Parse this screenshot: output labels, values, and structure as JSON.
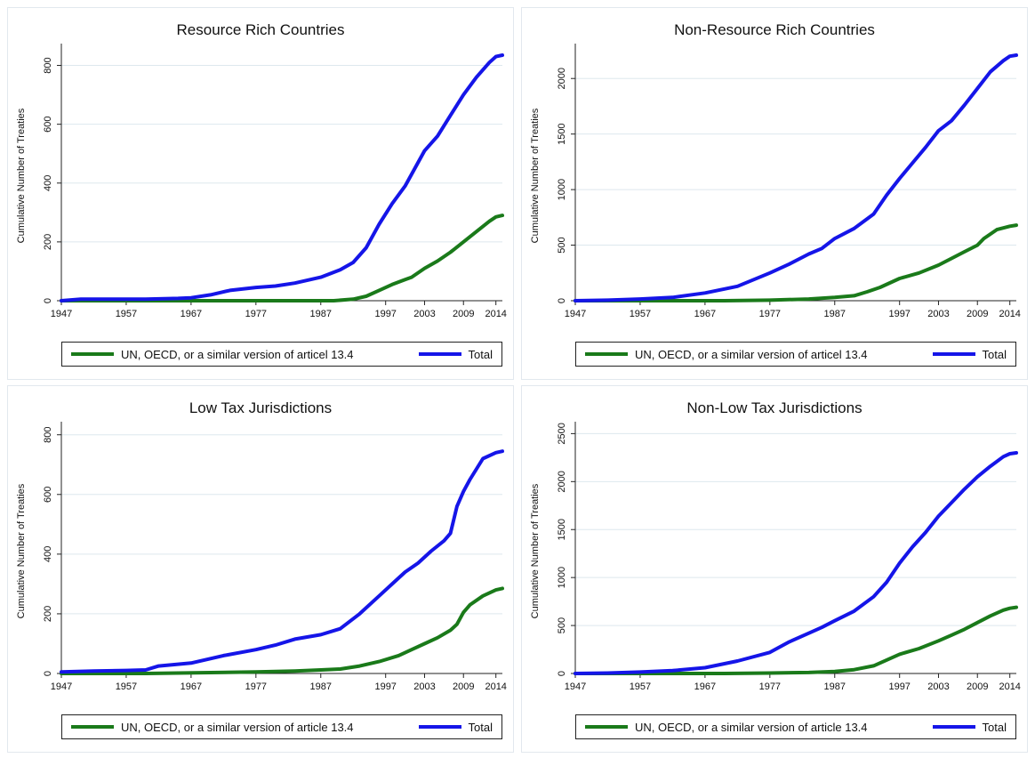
{
  "colors": {
    "green": "#1a7a1a",
    "blue": "#1515e8",
    "grid": "#dde8ee"
  },
  "chart_data": [
    {
      "type": "line",
      "title": "Resource Rich Countries",
      "xlabel": "",
      "ylabel": "Cumulative Number of Treaties",
      "x_ticks": [
        1947,
        1957,
        1967,
        1977,
        1987,
        1997,
        2003,
        2009,
        2014
      ],
      "y_ticks": [
        0,
        200,
        400,
        600,
        800
      ],
      "xlim": [
        1947,
        2015
      ],
      "ylim": [
        0,
        850
      ],
      "grid": true,
      "legend_position": "bottom",
      "series": [
        {
          "name": "UN, OECD, or a similar version of articel 13.4",
          "color": "green",
          "x": [
            1947,
            1960,
            1970,
            1980,
            1989,
            1992,
            1994,
            1996,
            1998,
            2000,
            2001,
            2003,
            2005,
            2007,
            2009,
            2011,
            2013,
            2014,
            2015
          ],
          "y": [
            0,
            0,
            0,
            0,
            0,
            5,
            15,
            35,
            55,
            72,
            80,
            110,
            135,
            165,
            200,
            235,
            270,
            285,
            290
          ]
        },
        {
          "name": "Total",
          "color": "blue",
          "x": [
            1947,
            1950,
            1955,
            1960,
            1965,
            1967,
            1970,
            1973,
            1977,
            1980,
            1983,
            1987,
            1990,
            1992,
            1994,
            1996,
            1998,
            2000,
            2002,
            2003,
            2005,
            2007,
            2009,
            2011,
            2013,
            2014,
            2015
          ],
          "y": [
            0,
            5,
            5,
            5,
            8,
            10,
            20,
            35,
            45,
            50,
            60,
            80,
            105,
            130,
            180,
            260,
            330,
            390,
            470,
            510,
            560,
            630,
            700,
            760,
            810,
            830,
            835
          ]
        }
      ]
    },
    {
      "type": "line",
      "title": "Non-Resource Rich Countries",
      "xlabel": "",
      "ylabel": "Cumulative Number of Treaties",
      "x_ticks": [
        1947,
        1957,
        1967,
        1977,
        1987,
        1997,
        2003,
        2009,
        2014
      ],
      "y_ticks": [
        0,
        500,
        1000,
        1500,
        2000
      ],
      "xlim": [
        1947,
        2015
      ],
      "ylim": [
        0,
        2250
      ],
      "grid": true,
      "legend_position": "bottom",
      "series": [
        {
          "name": "UN, OECD, or a similar version of articel 13.4",
          "color": "green",
          "x": [
            1947,
            1960,
            1970,
            1977,
            1983,
            1987,
            1990,
            1992,
            1994,
            1997,
            2000,
            2003,
            2005,
            2007,
            2009,
            2010,
            2012,
            2014,
            2015
          ],
          "y": [
            0,
            0,
            0,
            5,
            15,
            30,
            45,
            80,
            120,
            200,
            250,
            320,
            380,
            440,
            500,
            560,
            640,
            670,
            680
          ]
        },
        {
          "name": "Total",
          "color": "blue",
          "x": [
            1947,
            1952,
            1957,
            1962,
            1967,
            1972,
            1977,
            1980,
            1983,
            1985,
            1987,
            1990,
            1993,
            1995,
            1997,
            1999,
            2001,
            2003,
            2005,
            2007,
            2009,
            2011,
            2013,
            2014,
            2015
          ],
          "y": [
            0,
            5,
            15,
            30,
            70,
            130,
            250,
            330,
            420,
            470,
            560,
            650,
            780,
            950,
            1100,
            1240,
            1380,
            1530,
            1620,
            1760,
            1910,
            2060,
            2160,
            2200,
            2210
          ]
        }
      ]
    },
    {
      "type": "line",
      "title": "Low Tax Jurisdictions",
      "xlabel": "",
      "ylabel": "Cumulative Number of Treaties",
      "x_ticks": [
        1947,
        1957,
        1967,
        1977,
        1987,
        1997,
        2003,
        2009,
        2014
      ],
      "y_ticks": [
        0,
        200,
        400,
        600,
        800
      ],
      "xlim": [
        1947,
        2015
      ],
      "ylim": [
        0,
        820
      ],
      "grid": true,
      "legend_position": "bottom",
      "series": [
        {
          "name": "UN, OECD, or a similar version of article 13.4",
          "color": "green",
          "x": [
            1947,
            1960,
            1970,
            1977,
            1983,
            1987,
            1990,
            1993,
            1996,
            1999,
            2001,
            2003,
            2005,
            2007,
            2008,
            2009,
            2010,
            2012,
            2014,
            2015
          ],
          "y": [
            0,
            0,
            3,
            5,
            8,
            12,
            15,
            25,
            40,
            60,
            80,
            100,
            120,
            145,
            165,
            205,
            230,
            260,
            280,
            285
          ]
        },
        {
          "name": "Total",
          "color": "blue",
          "x": [
            1947,
            1952,
            1957,
            1960,
            1962,
            1967,
            1972,
            1977,
            1980,
            1983,
            1987,
            1990,
            1993,
            1996,
            1998,
            2000,
            2002,
            2004,
            2006,
            2007,
            2008,
            2009,
            2010,
            2012,
            2014,
            2015
          ],
          "y": [
            5,
            8,
            10,
            12,
            25,
            35,
            60,
            80,
            95,
            115,
            130,
            150,
            200,
            260,
            300,
            340,
            370,
            410,
            445,
            470,
            560,
            610,
            650,
            720,
            740,
            745
          ]
        }
      ]
    },
    {
      "type": "line",
      "title": "Non-Low Tax Jurisdictions",
      "xlabel": "",
      "ylabel": "Cumulative Number of Treaties",
      "x_ticks": [
        1947,
        1957,
        1967,
        1977,
        1987,
        1997,
        2003,
        2009,
        2014
      ],
      "y_ticks": [
        0,
        500,
        1000,
        1500,
        2000,
        2500
      ],
      "xlim": [
        1947,
        2015
      ],
      "ylim": [
        0,
        2550
      ],
      "grid": true,
      "legend_position": "bottom",
      "series": [
        {
          "name": "UN, OECD, or a similar version of article 13.4",
          "color": "green",
          "x": [
            1947,
            1960,
            1970,
            1977,
            1983,
            1987,
            1990,
            1993,
            1995,
            1997,
            2000,
            2003,
            2005,
            2007,
            2009,
            2011,
            2013,
            2014,
            2015
          ],
          "y": [
            0,
            0,
            0,
            5,
            10,
            20,
            40,
            80,
            140,
            200,
            260,
            340,
            400,
            460,
            530,
            600,
            660,
            680,
            690
          ]
        },
        {
          "name": "Total",
          "color": "blue",
          "x": [
            1947,
            1952,
            1957,
            1962,
            1967,
            1972,
            1977,
            1980,
            1983,
            1985,
            1987,
            1990,
            1993,
            1995,
            1997,
            1999,
            2001,
            2003,
            2005,
            2007,
            2009,
            2011,
            2013,
            2014,
            2015
          ],
          "y": [
            0,
            5,
            15,
            30,
            60,
            130,
            220,
            330,
            420,
            480,
            550,
            650,
            800,
            950,
            1150,
            1320,
            1470,
            1640,
            1780,
            1920,
            2050,
            2160,
            2260,
            2290,
            2300
          ]
        }
      ]
    }
  ]
}
